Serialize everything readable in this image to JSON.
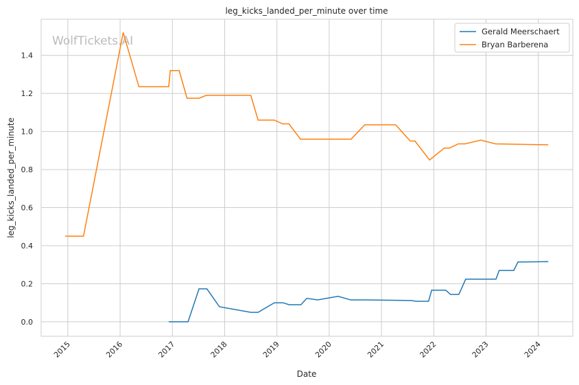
{
  "chart_data": {
    "type": "line",
    "title": "leg_kicks_landed_per_minute over time",
    "xlabel": "Date",
    "ylabel": "leg_kicks_landed_per_minute",
    "watermark": "WolfTickets.AI",
    "xlim": [
      2014.49,
      2024.66
    ],
    "ylim": [
      -0.076,
      1.59
    ],
    "xticks": [
      2015,
      2016,
      2017,
      2018,
      2019,
      2020,
      2021,
      2022,
      2023,
      2024
    ],
    "xtick_labels": [
      "2015",
      "2016",
      "2017",
      "2018",
      "2019",
      "2020",
      "2021",
      "2022",
      "2023",
      "2024"
    ],
    "yticks": [
      0,
      0.2,
      0.4,
      0.6,
      0.8,
      1.0,
      1.2,
      1.4
    ],
    "ytick_labels": [
      "0.0",
      "0.2",
      "0.4",
      "0.6",
      "0.8",
      "1.0",
      "1.2",
      "1.4"
    ],
    "grid": true,
    "legend": "top-right",
    "series": [
      {
        "name": "Gerald Meerschaert",
        "color": "#1f77b4",
        "x": [
          2016.93,
          2017.3,
          2017.51,
          2017.66,
          2017.9,
          2018.5,
          2018.64,
          2018.95,
          2019.12,
          2019.23,
          2019.46,
          2019.57,
          2019.78,
          2020.17,
          2020.41,
          2020.71,
          2021.56,
          2021.67,
          2021.9,
          2021.96,
          2022.23,
          2022.32,
          2022.48,
          2022.61,
          2023.19,
          2023.25,
          2023.53,
          2023.61,
          2024.19
        ],
        "y": [
          0,
          0,
          0.173,
          0.173,
          0.079,
          0.05,
          0.05,
          0.1,
          0.1,
          0.09,
          0.09,
          0.123,
          0.115,
          0.134,
          0.115,
          0.115,
          0.112,
          0.108,
          0.108,
          0.166,
          0.166,
          0.144,
          0.144,
          0.224,
          0.224,
          0.27,
          0.27,
          0.314,
          0.316
        ]
      },
      {
        "name": "Bryan Barberena",
        "color": "#ff7f0e",
        "x": [
          2014.95,
          2015.3,
          2016.06,
          2016.36,
          2016.93,
          2016.96,
          2017.13,
          2017.28,
          2017.51,
          2017.65,
          2018.5,
          2018.64,
          2018.95,
          2019.11,
          2019.23,
          2019.45,
          2020.42,
          2020.68,
          2021.27,
          2021.55,
          2021.64,
          2021.92,
          2022.2,
          2022.3,
          2022.47,
          2022.6,
          2022.9,
          2023.18,
          2024.19
        ],
        "y": [
          0.45,
          0.45,
          1.52,
          1.235,
          1.235,
          1.32,
          1.32,
          1.175,
          1.175,
          1.19,
          1.19,
          1.06,
          1.06,
          1.04,
          1.04,
          0.96,
          0.96,
          1.035,
          1.035,
          0.95,
          0.95,
          0.85,
          0.913,
          0.913,
          0.935,
          0.935,
          0.955,
          0.935,
          0.93
        ]
      }
    ]
  }
}
